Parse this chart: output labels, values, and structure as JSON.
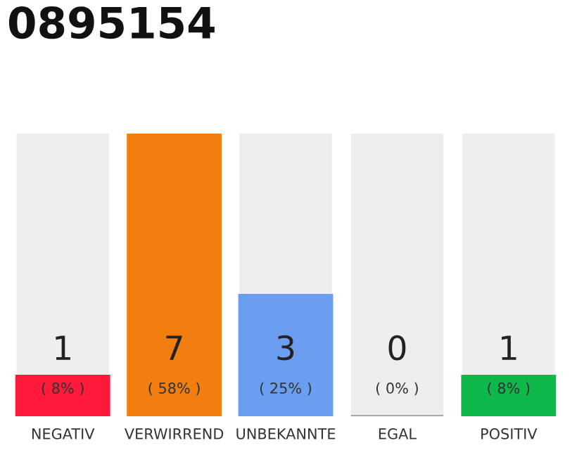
{
  "chart_data": {
    "type": "bar",
    "title": "0895154",
    "categories": [
      "NEGATIV",
      "VERWIRREND",
      "UNBEKANNTE",
      "EGAL",
      "POSITIV"
    ],
    "values": [
      1,
      7,
      3,
      0,
      1
    ],
    "colors": [
      "#ff1a3c",
      "#f27e0f",
      "#6b9ef0",
      "#9e9e9e",
      "#0fb84a"
    ],
    "ylim": [
      0,
      7
    ],
    "data_labels": true,
    "grid": false,
    "legend": false,
    "tick_labels": "x",
    "annotations": [
      "( 8% )",
      "( 58% )",
      "( 25% )",
      "( 0% )",
      "( 8% )"
    ]
  }
}
